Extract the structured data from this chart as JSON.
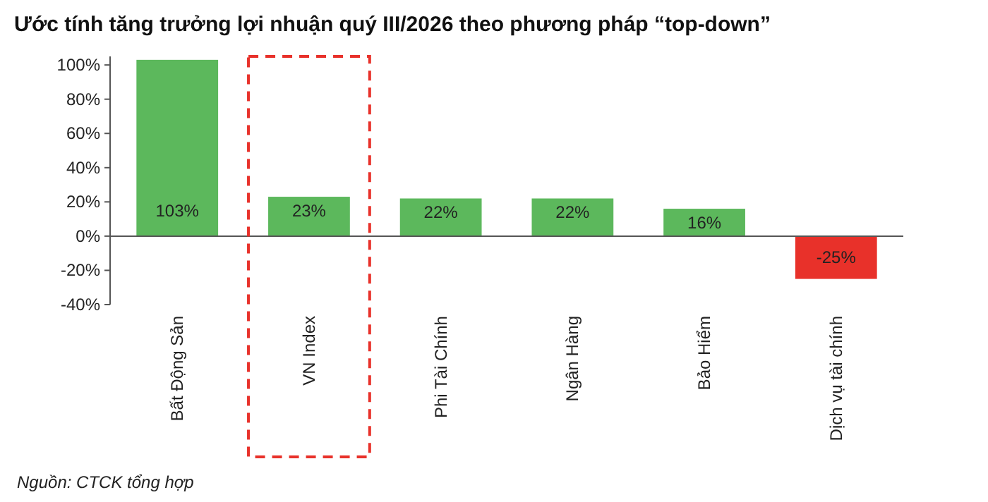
{
  "chart_data": {
    "type": "bar",
    "title": "Ước tính tăng trưởng lợi nhuận quý III/2026 theo phương pháp “top-down”",
    "categories": [
      "Bất Động Sản",
      "VN Index",
      "Phi Tài Chính",
      "Ngân Hàng",
      "Bảo Hiểm",
      "Dịch vụ tài chính"
    ],
    "values": [
      103,
      23,
      22,
      22,
      16,
      -25
    ],
    "value_labels": [
      "103%",
      "23%",
      "22%",
      "22%",
      "16%",
      "-25%"
    ],
    "colors": [
      "#5cb85c",
      "#5cb85c",
      "#5cb85c",
      "#5cb85c",
      "#5cb85c",
      "#e8312a"
    ],
    "ylim": [
      -40,
      105
    ],
    "yticks": [
      {
        "value": -40,
        "label": "-40%"
      },
      {
        "value": -20,
        "label": "-20%"
      },
      {
        "value": 0,
        "label": "0%"
      },
      {
        "value": 20,
        "label": "20%"
      },
      {
        "value": 40,
        "label": "40%"
      },
      {
        "value": 60,
        "label": "60%"
      },
      {
        "value": 80,
        "label": "80%"
      },
      {
        "value": 100,
        "label": "100%"
      }
    ],
    "annotations": [
      "Nguồn: CTCK tổng hợp"
    ]
  }
}
